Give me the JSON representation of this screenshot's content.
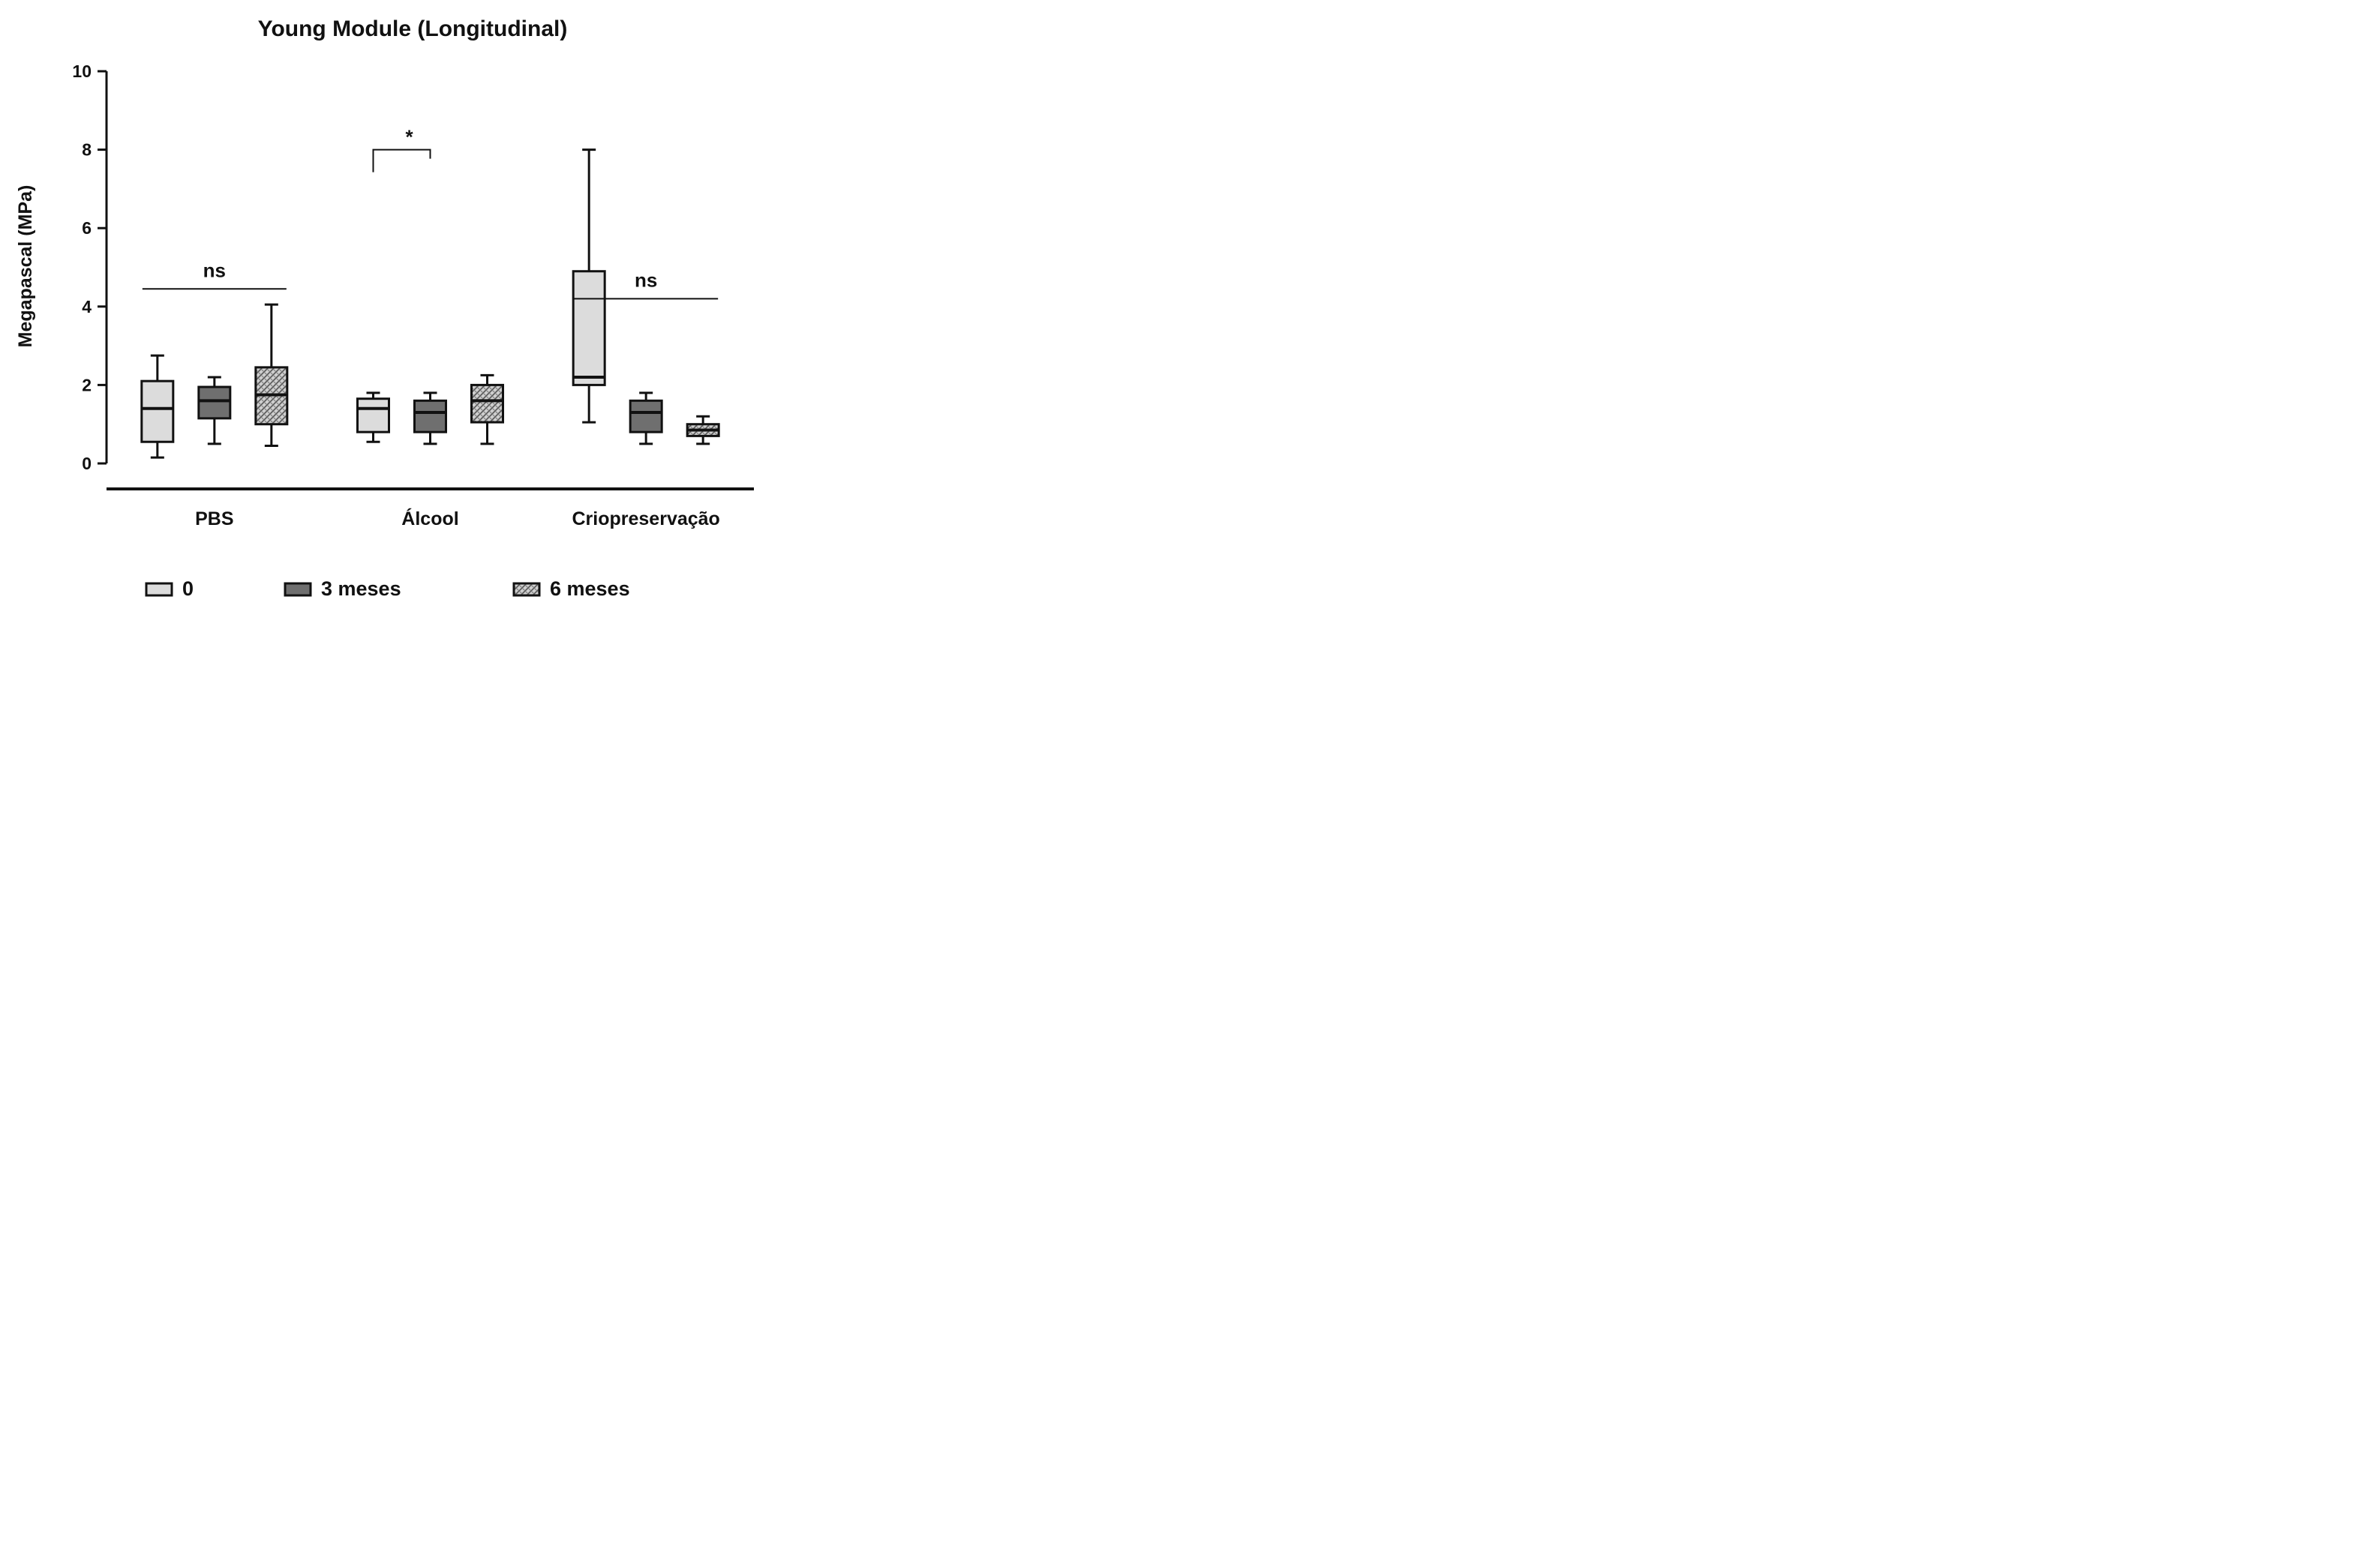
{
  "colors": {
    "g0": "#dcdcdc",
    "g3": "#6f6f6f",
    "g6": "#c8c8c8",
    "line": "#111111"
  },
  "chart_data": [
    {
      "type": "box",
      "title": "Young Module (Longitudinal)",
      "ylabel": "Megapascal (MPa)",
      "ylim": [
        0,
        10
      ],
      "yticks": [
        "0",
        "2",
        "4",
        "6",
        "8",
        "10"
      ],
      "categories": [
        "PBS",
        "Álcool",
        "Criopreservação"
      ],
      "legend": [
        "0",
        "3 meses",
        "6 meses"
      ],
      "series": [
        {
          "values": [
            [
              0.15,
              0.55,
              1.4,
              2.1,
              2.75
            ],
            [
              0.5,
              1.15,
              1.6,
              1.95,
              2.2
            ],
            [
              0.45,
              1.0,
              1.75,
              2.45,
              4.05
            ]
          ]
        },
        {
          "values": [
            [
              0.55,
              0.8,
              1.4,
              1.65,
              1.8
            ],
            [
              0.5,
              0.8,
              1.3,
              1.6,
              1.8
            ],
            [
              0.5,
              1.05,
              1.6,
              2.0,
              2.25
            ]
          ]
        },
        {
          "values": [
            [
              1.05,
              2.0,
              2.2,
              4.9,
              8.0
            ],
            [
              0.5,
              0.8,
              1.3,
              1.6,
              1.8
            ],
            [
              0.5,
              0.7,
              0.85,
              1.0,
              1.2
            ]
          ]
        }
      ],
      "outliers": [],
      "significance": [
        {
          "label": "ns",
          "y": 4.45
        },
        {
          "label": "*",
          "y": 8.0
        },
        {
          "label": "ns",
          "y": 4.2
        }
      ]
    }
  ]
}
